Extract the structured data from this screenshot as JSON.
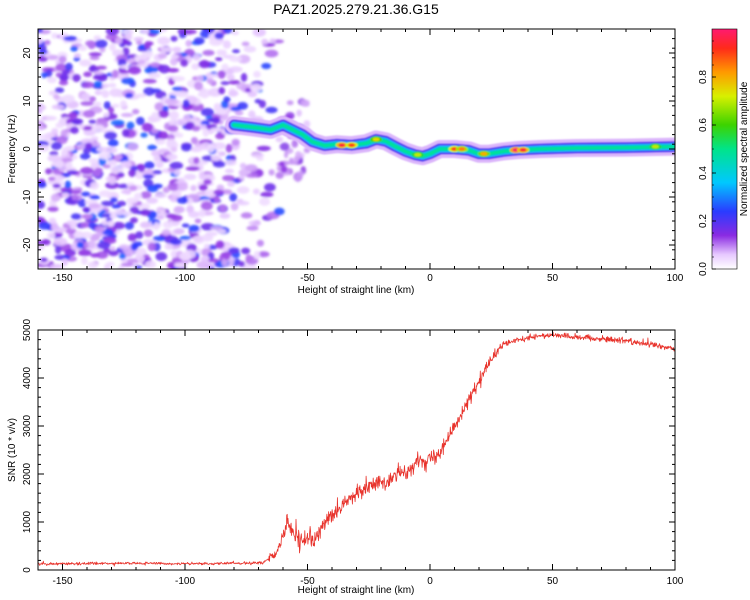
{
  "title": "PAZ1.2025.279.21.36.G15",
  "colors": {
    "snr_line": "#e8322b",
    "axis": "#000000",
    "background": "#ffffff"
  },
  "chart_data": [
    {
      "type": "heatmap",
      "xlabel": "Height of straight line (km)",
      "ylabel": "Frequency (Hz)",
      "xlim": [
        -160,
        100
      ],
      "ylim": [
        -25,
        25
      ],
      "xticks": [
        -150,
        -100,
        -50,
        0,
        50,
        100
      ],
      "yticks": [
        -20,
        -10,
        0,
        10,
        20
      ],
      "colormap": "rainbow (violet to red)",
      "colorbar": {
        "label": "Normalized spectral amplitude",
        "range": [
          0,
          1
        ],
        "ticks": [
          "0.0",
          "0.2",
          "0.4",
          "0.6",
          "0.8"
        ]
      },
      "noise_region_x": [
        -160,
        -65
      ],
      "ridge": [
        {
          "x": -80,
          "y": 5
        },
        {
          "x": -72,
          "y": 4.5
        },
        {
          "x": -65,
          "y": 4
        },
        {
          "x": -60,
          "y": 5
        },
        {
          "x": -56,
          "y": 4
        },
        {
          "x": -52,
          "y": 3
        },
        {
          "x": -48,
          "y": 1.5
        },
        {
          "x": -43,
          "y": 0.7
        },
        {
          "x": -38,
          "y": 1
        },
        {
          "x": -32,
          "y": 0.8
        },
        {
          "x": -26,
          "y": 1.2
        },
        {
          "x": -22,
          "y": 2
        },
        {
          "x": -18,
          "y": 1.6
        },
        {
          "x": -14,
          "y": 0.5
        },
        {
          "x": -10,
          "y": -0.5
        },
        {
          "x": -6,
          "y": -1.2
        },
        {
          "x": -3,
          "y": -1.5
        },
        {
          "x": 0,
          "y": -1
        },
        {
          "x": 4,
          "y": 0
        },
        {
          "x": 10,
          "y": 0
        },
        {
          "x": 16,
          "y": -0.3
        },
        {
          "x": 20,
          "y": -1
        },
        {
          "x": 24,
          "y": -1
        },
        {
          "x": 30,
          "y": -0.5
        },
        {
          "x": 36,
          "y": -0.2
        },
        {
          "x": 45,
          "y": 0
        },
        {
          "x": 60,
          "y": 0.2
        },
        {
          "x": 80,
          "y": 0.3
        },
        {
          "x": 100,
          "y": 0.5
        }
      ],
      "ridge_peaks": [
        {
          "x": -36,
          "y": 0.8,
          "amp": 0.95
        },
        {
          "x": -32,
          "y": 0.8,
          "amp": 0.9
        },
        {
          "x": -22,
          "y": 2,
          "amp": 0.75
        },
        {
          "x": -5,
          "y": -1.2,
          "amp": 0.7
        },
        {
          "x": 10,
          "y": 0,
          "amp": 0.9
        },
        {
          "x": 13,
          "y": 0,
          "amp": 0.85
        },
        {
          "x": 22,
          "y": -1,
          "amp": 0.8
        },
        {
          "x": 35,
          "y": -0.2,
          "amp": 1.0
        },
        {
          "x": 38,
          "y": -0.2,
          "amp": 0.95
        },
        {
          "x": 92,
          "y": 0.5,
          "amp": 0.7
        }
      ]
    },
    {
      "type": "line",
      "xlabel": "Height of straight line (km)",
      "ylabel": "SNR (10 * v/v)",
      "xlim": [
        -160,
        100
      ],
      "ylim": [
        0,
        5000
      ],
      "xticks": [
        -150,
        -100,
        -50,
        0,
        50,
        100
      ],
      "yticks": [
        0,
        1000,
        2000,
        3000,
        4000,
        5000
      ],
      "series": [
        {
          "x": [
            -160,
            -140,
            -120,
            -100,
            -80,
            -68,
            -63,
            -60,
            -58,
            -56,
            -53,
            -50,
            -47,
            -45,
            -42,
            -38,
            -33,
            -28,
            -23,
            -18,
            -13,
            -8,
            -4,
            0,
            4,
            8,
            12,
            16,
            20,
            24,
            27,
            30,
            35,
            40,
            45,
            50,
            55,
            60,
            70,
            80,
            90,
            100
          ],
          "values": [
            130,
            135,
            140,
            130,
            140,
            150,
            320,
            700,
            1100,
            800,
            550,
            700,
            600,
            800,
            1050,
            1200,
            1500,
            1700,
            1800,
            1800,
            2000,
            2100,
            2300,
            2300,
            2500,
            2800,
            3200,
            3550,
            3900,
            4300,
            4500,
            4700,
            4780,
            4830,
            4880,
            4900,
            4880,
            4850,
            4820,
            4780,
            4700,
            4600
          ],
          "noise": [
            45,
            45,
            45,
            40,
            45,
            60,
            220,
            380,
            460,
            420,
            360,
            340,
            330,
            320,
            300,
            280,
            260,
            270,
            260,
            260,
            260,
            260,
            260,
            260,
            260,
            260,
            260,
            250,
            230,
            200,
            160,
            130,
            110,
            100,
            100,
            100,
            100,
            100,
            100,
            100,
            100,
            100
          ]
        }
      ]
    }
  ]
}
